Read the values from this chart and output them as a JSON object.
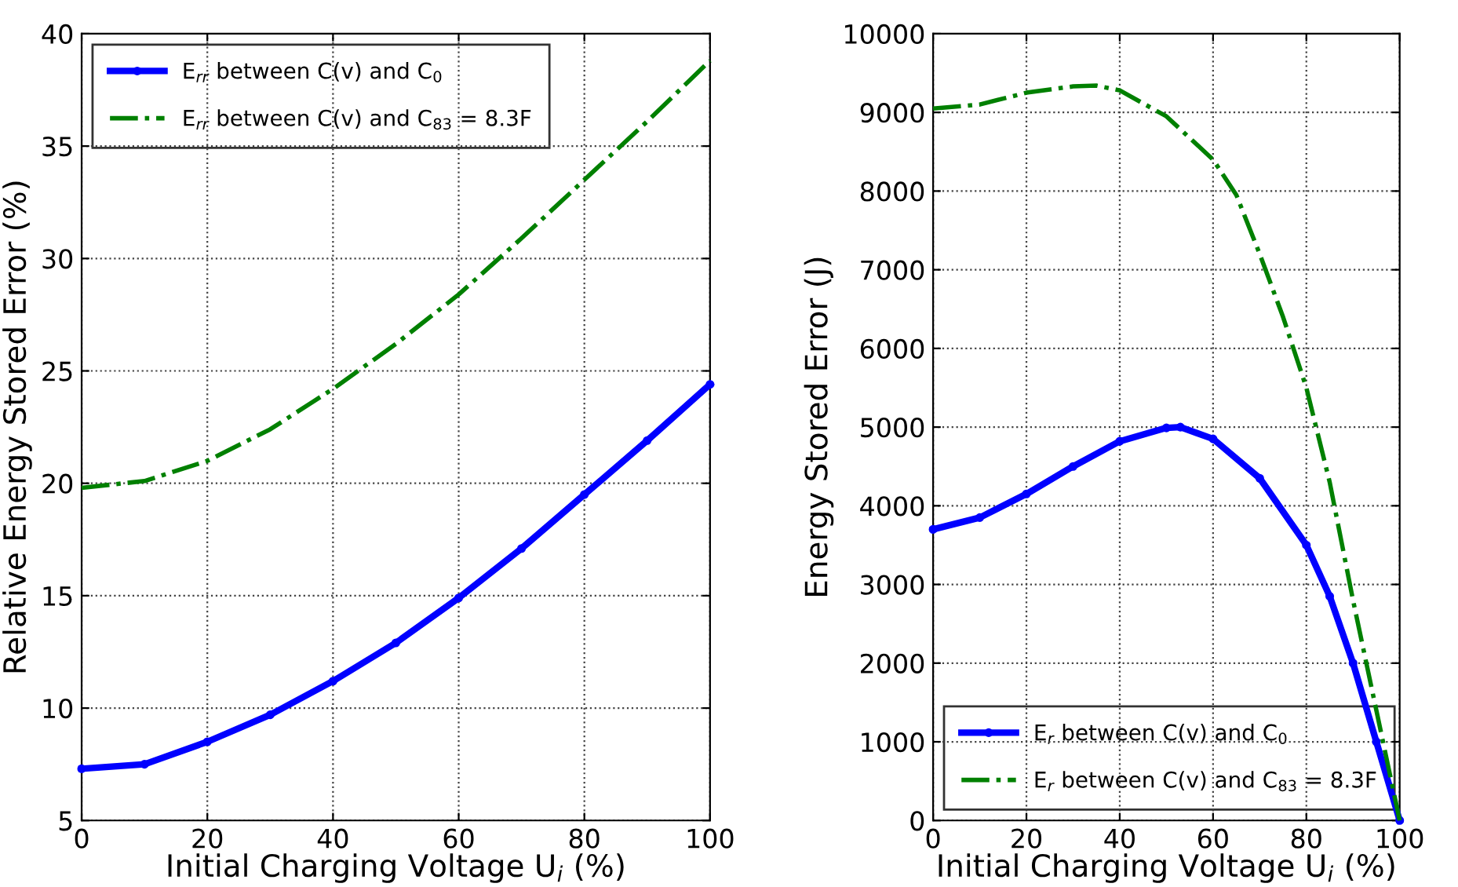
{
  "chart_data": [
    {
      "type": "line",
      "xlabel": "Initial Charging Voltage U$_{i}$ (%)",
      "ylabel": "Relative Energy Stored Error (%)",
      "xlim": [
        0,
        100
      ],
      "ylim": [
        5,
        40
      ],
      "xticks": [
        0,
        20,
        40,
        60,
        80,
        100
      ],
      "yticks": [
        5,
        10,
        15,
        20,
        25,
        30,
        35,
        40
      ],
      "grid": true,
      "legend": "top left",
      "series": [
        {
          "name": "E$_{rr}$ between C(v) and C$_{0}$",
          "color": "#0000ff",
          "marker": "circle",
          "line_style": "solid",
          "x": [
            0,
            10,
            20,
            30,
            40,
            50,
            60,
            70,
            80,
            90,
            100
          ],
          "values": [
            7.3,
            7.5,
            8.5,
            9.7,
            11.2,
            12.9,
            14.9,
            17.1,
            19.5,
            21.9,
            24.4
          ]
        },
        {
          "name": "E$_{rr}$ between C(v) and C$_{83}$ = 8.3F",
          "color": "#008000",
          "marker": "none",
          "line_style": "dashdot",
          "x": [
            0,
            10,
            20,
            30,
            40,
            50,
            60,
            70,
            80,
            90,
            100
          ],
          "values": [
            19.8,
            20.1,
            21.0,
            22.4,
            24.2,
            26.2,
            28.4,
            30.9,
            33.5,
            36.1,
            38.8
          ]
        }
      ]
    },
    {
      "type": "line",
      "xlabel": "Initial Charging Voltage U$_{i}$ (%)",
      "ylabel": "Energy Stored Error (J)",
      "xlim": [
        0,
        100
      ],
      "ylim": [
        0,
        10000
      ],
      "xticks": [
        0,
        20,
        40,
        60,
        80,
        100
      ],
      "yticks": [
        0,
        1000,
        2000,
        3000,
        4000,
        5000,
        6000,
        7000,
        8000,
        9000,
        10000
      ],
      "grid": true,
      "legend": "bottom left",
      "series": [
        {
          "name": "E$_{r}$ between C(v) and C$_{0}$",
          "color": "#0000ff",
          "marker": "circle",
          "line_style": "solid",
          "x": [
            0,
            10,
            20,
            30,
            40,
            50,
            53,
            60,
            70,
            80,
            85,
            90,
            95,
            100
          ],
          "values": [
            3700,
            3850,
            4150,
            4500,
            4820,
            4990,
            5000,
            4850,
            4350,
            3500,
            2850,
            2000,
            1000,
            0
          ]
        },
        {
          "name": "E$_{r}$ between C(v) and C$_{83}$ = 8.3F",
          "color": "#008000",
          "marker": "none",
          "line_style": "dashdot",
          "x": [
            0,
            10,
            20,
            30,
            35,
            40,
            50,
            60,
            65,
            70,
            75,
            80,
            85,
            90,
            95,
            100
          ],
          "values": [
            9050,
            9100,
            9250,
            9330,
            9340,
            9280,
            8950,
            8400,
            7950,
            7200,
            6400,
            5500,
            4300,
            2800,
            1400,
            0
          ]
        }
      ]
    }
  ]
}
